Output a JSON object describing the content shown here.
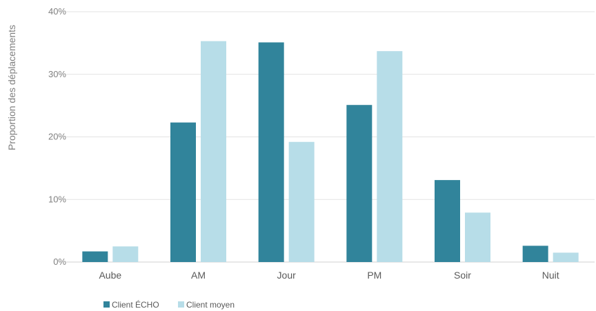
{
  "chart_data": {
    "type": "bar",
    "title": "",
    "xlabel": "",
    "ylabel": "Proportion des déplacements",
    "categories": [
      "Aube",
      "AM",
      "Jour",
      "PM",
      "Soir",
      "Nuit"
    ],
    "series": [
      {
        "name": "Client ÉCHO",
        "color": "#31849b",
        "values": [
          1.7,
          22.3,
          35.1,
          25.1,
          13.1,
          2.6
        ]
      },
      {
        "name": "Client moyen",
        "color": "#b7dde8",
        "values": [
          2.5,
          35.3,
          19.2,
          33.7,
          7.9,
          1.5
        ]
      }
    ],
    "ylim": [
      0,
      40
    ],
    "yticks": [
      "0%",
      "10%",
      "20%",
      "30%",
      "40%"
    ],
    "grid": true,
    "legend_position": "bottom-left"
  }
}
